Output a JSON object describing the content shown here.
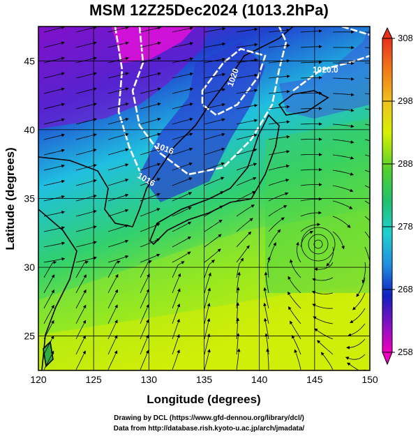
{
  "title": "MSM 12Z25Dec2024 (1013.2hPa)",
  "xlabel": "Longitude (degrees)",
  "ylabel": "Latitude  (degrees)",
  "x_ticks": [
    "120",
    "125",
    "130",
    "135",
    "140",
    "145",
    "150"
  ],
  "y_ticks": [
    "25",
    "30",
    "35",
    "40",
    "45"
  ],
  "colorbar_ticks": [
    "308",
    "298",
    "288",
    "278",
    "268",
    "258"
  ],
  "contour_labels": [
    "1020",
    "1016",
    "1016",
    "1020.0"
  ],
  "credits": {
    "line1": "Drawing by DCL (https://www.gfd-dennou.org/library/dcl/)",
    "line2": "Data from http://database.rish.kyoto-u.ac.jp/arch/jmadata/"
  },
  "map_data": {
    "lon_range": [
      120,
      150
    ],
    "lat_range": [
      22.5,
      47.5
    ],
    "colorbar_range": [
      258,
      308
    ],
    "colors": {
      "cold": "#e000e0",
      "cool": "#1030d0",
      "mild": "#20d0d0",
      "warm": "#30d040",
      "hot": "#c8f000"
    }
  }
}
